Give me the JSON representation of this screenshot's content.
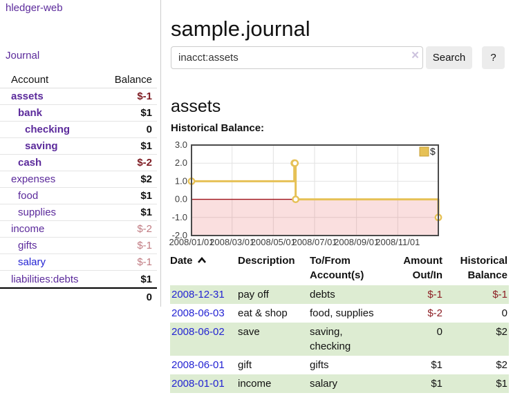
{
  "sidebar": {
    "brand": "hledger-web",
    "nav_journal": "Journal",
    "header": {
      "account": "Account",
      "balance": "Balance"
    },
    "accounts": [
      {
        "name": "assets",
        "balance": "$-1"
      },
      {
        "name": "bank",
        "balance": "$1"
      },
      {
        "name": "checking",
        "balance": "0"
      },
      {
        "name": "saving",
        "balance": "$1"
      },
      {
        "name": "cash",
        "balance": "$-2"
      },
      {
        "name": "expenses",
        "balance": "$2"
      },
      {
        "name": "food",
        "balance": "$1"
      },
      {
        "name": "supplies",
        "balance": "$1"
      },
      {
        "name": "income",
        "balance": "$-2"
      },
      {
        "name": "gifts",
        "balance": "$-1"
      },
      {
        "name": "salary",
        "balance": "$-1"
      },
      {
        "name": "liabilities:debts",
        "balance": "$1"
      }
    ],
    "total": "0"
  },
  "main": {
    "title": "sample.journal",
    "search": {
      "value": "inacct:assets",
      "clear": "×",
      "search_button": "Search",
      "help_button": "?"
    },
    "account_title": "assets",
    "chart_title": "Historical Balance:"
  },
  "chart_data": {
    "type": "line",
    "step": true,
    "title": "Historical Balance:",
    "x_type": "date",
    "x_range": [
      "2008-01-01",
      "2008-12-31"
    ],
    "ylim": [
      -2,
      3
    ],
    "yticks": [
      3,
      2,
      1,
      0,
      -1,
      -2
    ],
    "xticks": [
      "2008/01/01",
      "2008/03/01",
      "2008/05/01",
      "2008/07/01",
      "2008/09/01",
      "2008/11/01"
    ],
    "series": [
      {
        "name": "$",
        "color": "#e6c156",
        "points": [
          [
            "2008-01-01",
            1
          ],
          [
            "2008-06-01",
            2
          ],
          [
            "2008-06-02",
            2
          ],
          [
            "2008-06-03",
            0
          ],
          [
            "2008-12-31",
            -1
          ]
        ]
      }
    ],
    "grid": true,
    "legend_position": "top-right",
    "negative_region_color": "rgba(230,80,80,0.18)",
    "zero_line_color": "#9e131c",
    "border_color": "#4a4a4a",
    "gridline_color": "#e2e2e2",
    "legend_swatch_border": "#c79f35"
  },
  "register": {
    "columns": {
      "date": "Date",
      "description": "Description",
      "tofrom": "To/From\nAccount(s)",
      "amount": "Amount\nOut/In",
      "historical": "Historical\nBalance"
    },
    "rows": [
      {
        "date": "2008-12-31",
        "description": "pay off",
        "tofrom": "debts",
        "amount": "$-1",
        "historical": "$-1"
      },
      {
        "date": "2008-06-03",
        "description": "eat & shop",
        "tofrom": "food, supplies",
        "amount": "$-2",
        "historical": "0"
      },
      {
        "date": "2008-06-02",
        "description": "save",
        "tofrom": "saving,\nchecking",
        "amount": "0",
        "historical": "$2"
      },
      {
        "date": "2008-06-01",
        "description": "gift",
        "tofrom": "gifts",
        "amount": "$1",
        "historical": "$2"
      },
      {
        "date": "2008-01-01",
        "description": "income",
        "tofrom": "salary",
        "amount": "$1",
        "historical": "$1"
      }
    ]
  }
}
